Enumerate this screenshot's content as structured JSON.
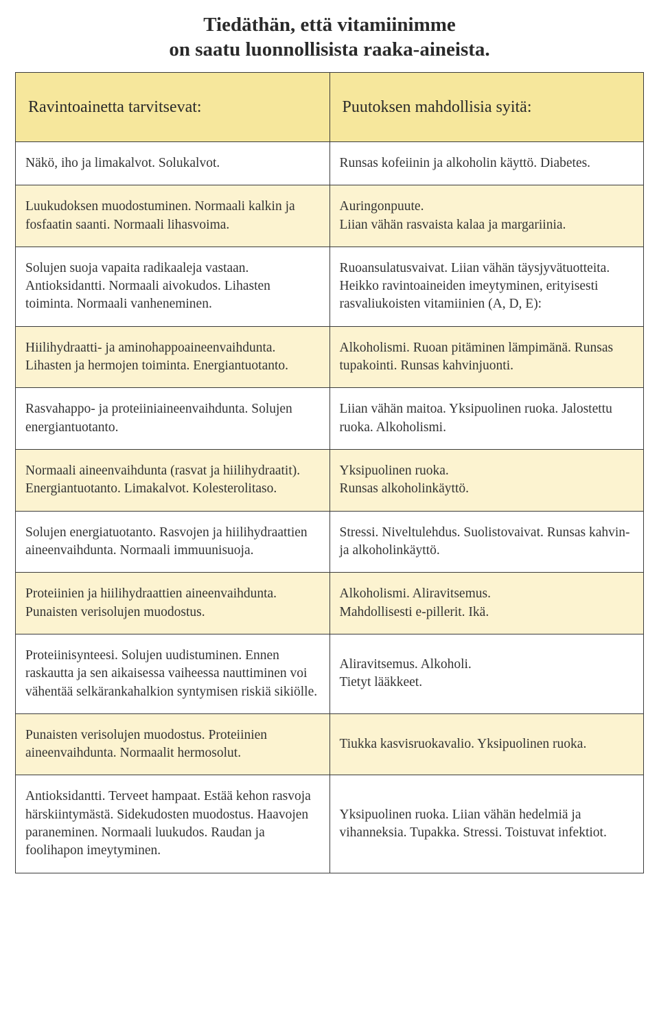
{
  "title_line1": "Tiedäthän, että vitamiinimme",
  "title_line2": "on saatu luonnollisista raaka-aineista.",
  "colors": {
    "header_bg": "#f6e79c",
    "row_alt_bg": "#fcf3d0",
    "row_bg": "#ffffff",
    "border": "#3a3a3a",
    "text": "#2a2a2a"
  },
  "table": {
    "header_left": "Ravintoainetta tarvitsevat:",
    "header_right": "Puutoksen mahdollisia syitä:",
    "rows": [
      {
        "left": "Näkö, iho ja limakalvot. Solukalvot.",
        "right": "Runsas kofeiinin ja alkoholin käyttö. Diabetes."
      },
      {
        "left": "Luukudoksen muodostuminen. Normaali kalkin ja fosfaatin saanti. Normaali lihasvoima.",
        "right": "Auringonpuute.\nLiian vähän rasvaista kalaa ja margariinia."
      },
      {
        "left": "Solujen suoja vapaita radikaaleja vastaan. Antioksidantti. Normaali aivokudos. Lihasten toiminta. Normaali vanheneminen.",
        "right": "Ruoansulatusvaivat. Liian vähän täysjyvätuotteita. Heikko ravintoaineiden imeytyminen, erityisesti rasvaliukoisten vitamiinien (A, D, E):"
      },
      {
        "left": "Hiilihydraatti- ja aminohappoaineenvaihdunta. Lihasten ja hermojen toiminta. Energiantuotanto.",
        "right": "Alkoholismi. Ruoan pitäminen lämpimänä. Runsas tupakointi. Runsas kahvinjuonti."
      },
      {
        "left": "Rasvahappo- ja proteiiniaineenvaihdunta. Solujen energiantuotanto.",
        "right": "Liian vähän maitoa. Yksipuolinen ruoka. Jalostettu ruoka. Alkoholismi."
      },
      {
        "left": "Normaali aineenvaihdunta (rasvat ja hiilihydraatit). Energiantuotanto. Limakalvot. Kolesterolitaso.",
        "right": "Yksipuolinen ruoka.\nRunsas alkoholinkäyttö."
      },
      {
        "left": "Solujen energiatuotanto. Rasvojen ja hiilihydraattien aineenvaihdunta. Normaali immuunisuoja.",
        "right": "Stressi. Niveltulehdus. Suolistovaivat. Runsas kahvin- ja alkoholinkäyttö."
      },
      {
        "left": "Proteiinien ja hiilihydraattien aineenvaihdunta. Punaisten verisolujen muodostus.",
        "right": "Alkoholismi. Aliravitsemus.\nMahdollisesti e-pillerit. Ikä."
      },
      {
        "left": "Proteiinisynteesi. Solujen uudistuminen. Ennen raskautta ja sen aikaisessa vaiheessa nauttiminen voi vähentää selkärankahalkion syntymisen riskiä sikiölle.",
        "right": "Aliravitsemus. Alkoholi.\nTietyt lääkkeet."
      },
      {
        "left": "Punaisten verisolujen muodostus. Proteiinien aineenvaihdunta. Normaalit hermosolut.",
        "right": "Tiukka kasvisruokavalio. Yksipuolinen ruoka."
      },
      {
        "left": "Antioksidantti. Terveet hampaat. Estää kehon rasvoja härskiintymästä. Sidekudosten muodostus. Haavojen paraneminen. Normaali luukudos. Raudan ja foolihapon imeytyminen.",
        "right": "Yksipuolinen ruoka. Liian vähän hedelmiä ja vihanneksia. Tupakka. Stressi. Toistuvat infektiot."
      }
    ]
  }
}
